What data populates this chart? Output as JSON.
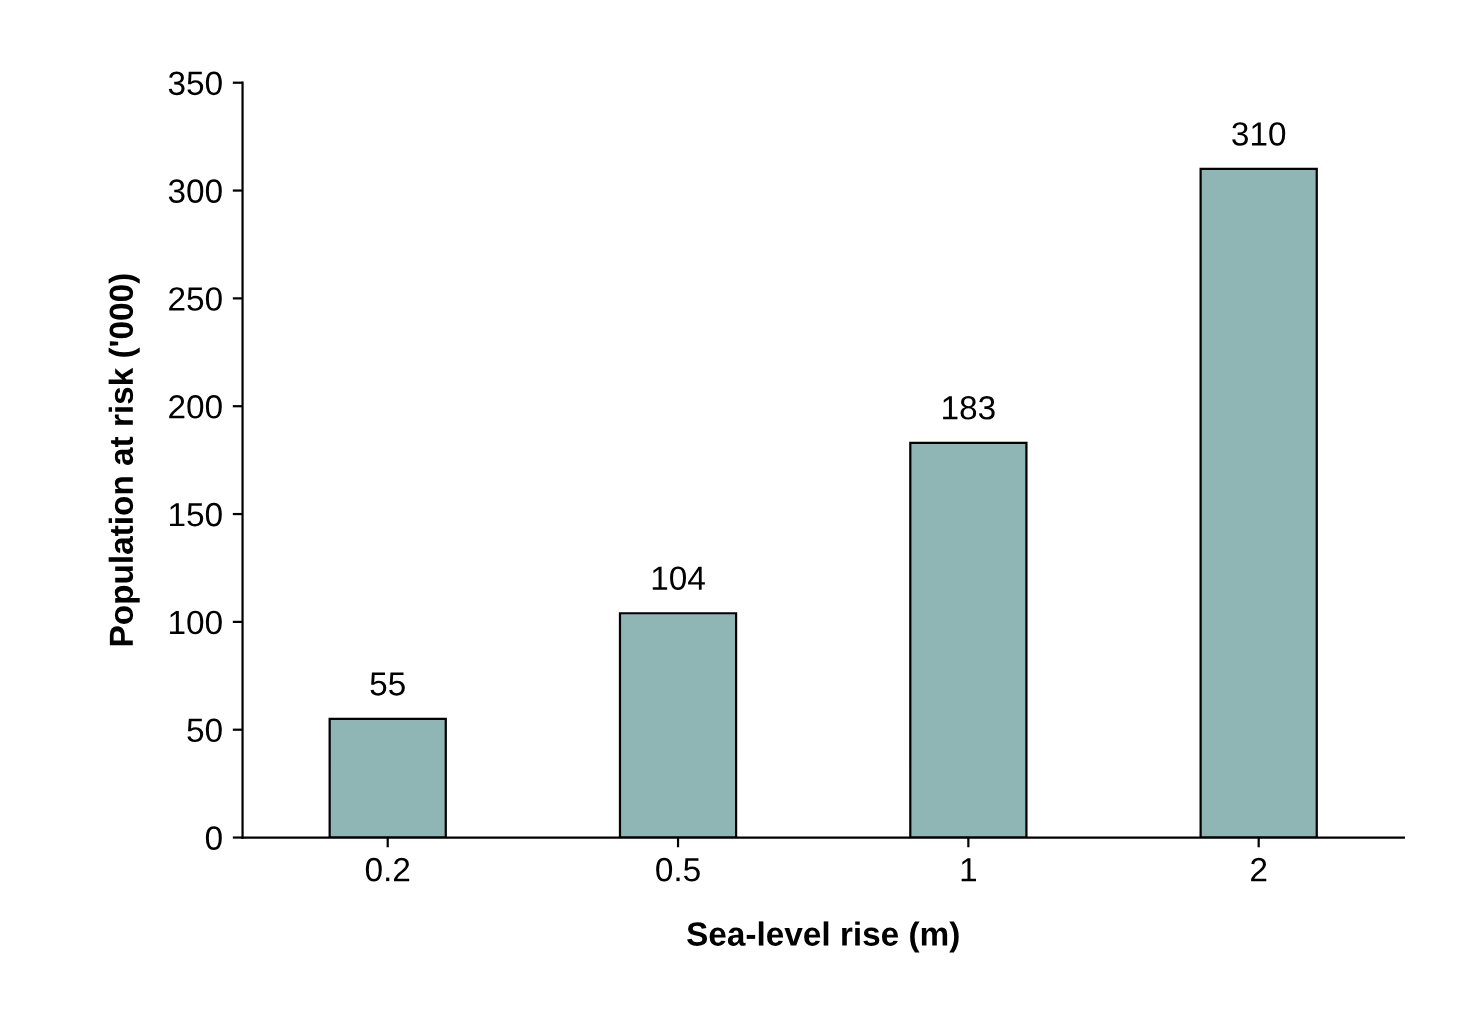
{
  "chart_data": {
    "type": "bar",
    "xlabel": "Sea-level rise (m)",
    "ylabel": "Population at risk ('000)",
    "categories": [
      "0.2",
      "0.5",
      "1",
      "2"
    ],
    "values": [
      55,
      104,
      183,
      310
    ],
    "color": "#8fb5b5",
    "ylim": [
      0,
      350
    ],
    "yticks": [
      0,
      50,
      100,
      150,
      200,
      250,
      300,
      350
    ],
    "grid": false,
    "data_labels": true
  }
}
